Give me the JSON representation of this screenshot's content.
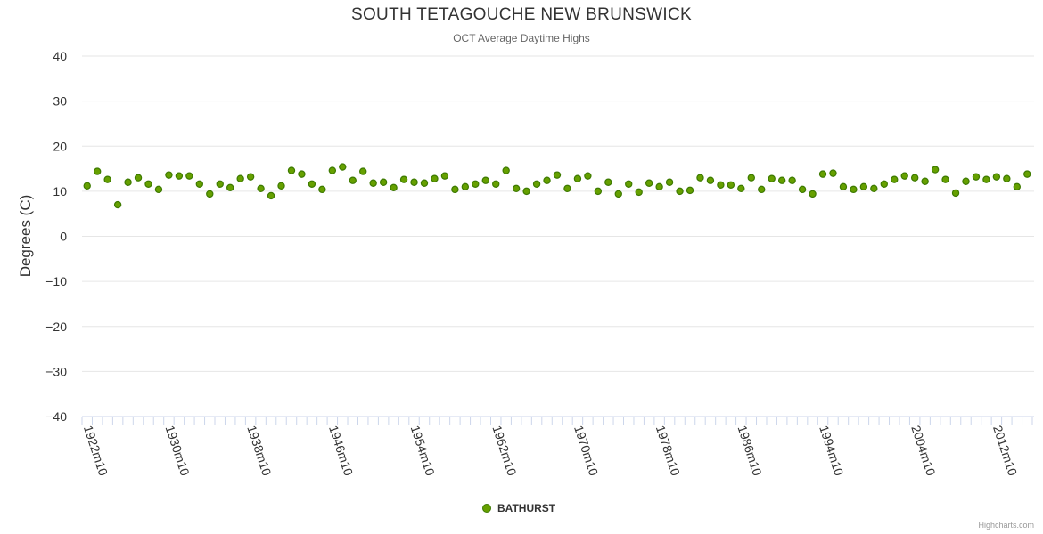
{
  "chart_data": {
    "type": "scatter",
    "title": "SOUTH TETAGOUCHE NEW BRUNSWICK",
    "subtitle": "OCT Average Daytime Highs",
    "ylabel": "Degrees (C)",
    "xlabel": "",
    "ylim": [
      -40,
      40
    ],
    "yticks": [
      40,
      30,
      20,
      10,
      0,
      -10,
      -20,
      -30,
      -40
    ],
    "xticks": [
      "1922m10",
      "1930m10",
      "1938m10",
      "1946m10",
      "1954m10",
      "1962m10",
      "1970m10",
      "1978m10",
      "1986m10",
      "1994m10",
      "2004m10",
      "2012m10"
    ],
    "grid": true,
    "legend_position": "bottom-center",
    "series": [
      {
        "name": "BATHURST",
        "color": "#66a000",
        "values": [
          11.2,
          14.4,
          12.6,
          7.0,
          12.0,
          13.0,
          11.6,
          10.4,
          13.6,
          13.4,
          13.4,
          11.6,
          9.4,
          11.6,
          10.8,
          12.8,
          13.2,
          10.6,
          9.0,
          11.2,
          14.6,
          13.8,
          11.6,
          10.4,
          14.6,
          15.4,
          12.4,
          14.4,
          11.8,
          12.0,
          10.8,
          12.6,
          12.0,
          11.8,
          12.8,
          13.4,
          10.4,
          11.0,
          11.6,
          12.4,
          11.6,
          14.6,
          10.6,
          10.0,
          11.6,
          12.4,
          13.6,
          10.6,
          12.8,
          13.4,
          10.0,
          12.0,
          9.4,
          11.6,
          9.8,
          11.8,
          11.0,
          12.0,
          10.0,
          10.2,
          13.0,
          12.4,
          11.4,
          11.4,
          10.6,
          13.0,
          10.4,
          12.8,
          12.4,
          12.4,
          10.4,
          9.4,
          13.8,
          14.0,
          11.0,
          10.4,
          11.0,
          10.6,
          11.6,
          12.6,
          13.4,
          13.0,
          12.2,
          14.8,
          12.6,
          9.6,
          12.2,
          13.2,
          12.6,
          13.2,
          12.8,
          11.0,
          13.8
        ]
      }
    ]
  },
  "legend": {
    "label": "BATHURST",
    "marker": "circle"
  },
  "credits": {
    "text": "Highcharts.com"
  }
}
